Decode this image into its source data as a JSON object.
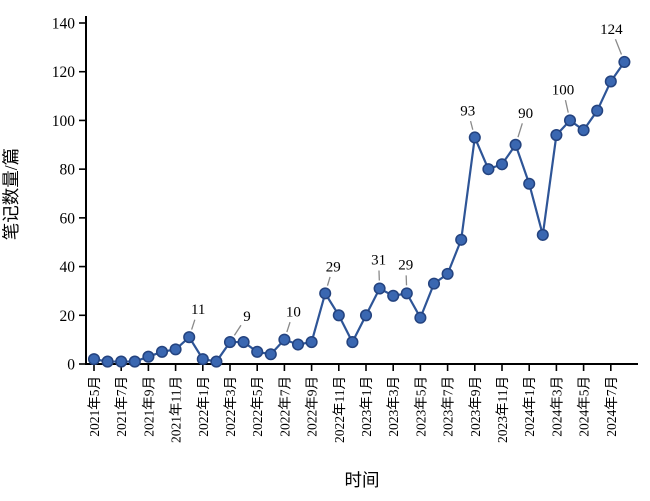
{
  "chart_data": {
    "type": "line",
    "title": "",
    "xlabel": "时间",
    "ylabel": "笔记数量/篇",
    "ylim": [
      0,
      140
    ],
    "yticks": [
      0,
      20,
      40,
      60,
      80,
      100,
      120,
      140
    ],
    "xtick_every": 2,
    "grid": false,
    "legend": "none",
    "x": [
      "2021年5月",
      "2021年6月",
      "2021年7月",
      "2021年8月",
      "2021年9月",
      "2021年10月",
      "2021年11月",
      "2021年12月",
      "2022年1月",
      "2022年2月",
      "2022年3月",
      "2022年4月",
      "2022年5月",
      "2022年6月",
      "2022年7月",
      "2022年8月",
      "2022年9月",
      "2022年10月",
      "2022年11月",
      "2022年12月",
      "2023年1月",
      "2023年2月",
      "2023年3月",
      "2023年4月",
      "2023年5月",
      "2023年6月",
      "2023年7月",
      "2023年8月",
      "2023年9月",
      "2023年10月",
      "2023年11月",
      "2023年12月",
      "2024年1月",
      "2024年2月",
      "2024年3月",
      "2024年4月",
      "2024年5月",
      "2024年6月",
      "2024年7月",
      "2024年8月"
    ],
    "values": [
      2,
      1,
      1,
      1,
      3,
      5,
      6,
      11,
      2,
      1,
      9,
      9,
      5,
      4,
      10,
      8,
      9,
      29,
      20,
      9,
      20,
      31,
      28,
      29,
      19,
      33,
      37,
      51,
      93,
      80,
      82,
      90,
      74,
      53,
      94,
      100,
      96,
      104,
      116,
      124
    ],
    "annotations": [
      {
        "index": 7,
        "text": "11",
        "ox": 9,
        "oy": -28
      },
      {
        "index": 10,
        "text": "9",
        "ox": 17,
        "oy": -26
      },
      {
        "index": 14,
        "text": "10",
        "ox": 9,
        "oy": -28
      },
      {
        "index": 17,
        "text": "29",
        "ox": 8,
        "oy": -27
      },
      {
        "index": 21,
        "text": "31",
        "ox": -1,
        "oy": -29
      },
      {
        "index": 23,
        "text": "29",
        "ox": -1,
        "oy": -29
      },
      {
        "index": 28,
        "text": "93",
        "ox": -7,
        "oy": -27
      },
      {
        "index": 31,
        "text": "90",
        "ox": 10,
        "oy": -32
      },
      {
        "index": 35,
        "text": "100",
        "ox": -7,
        "oy": -31
      },
      {
        "index": 39,
        "text": "124",
        "ox": -13,
        "oy": -33
      }
    ],
    "colors": {
      "line": "#2e5597",
      "marker_fill": "#3a67b1",
      "marker_stroke": "#24437f",
      "leader": "#8a8a8a",
      "axis": "#000000"
    }
  }
}
